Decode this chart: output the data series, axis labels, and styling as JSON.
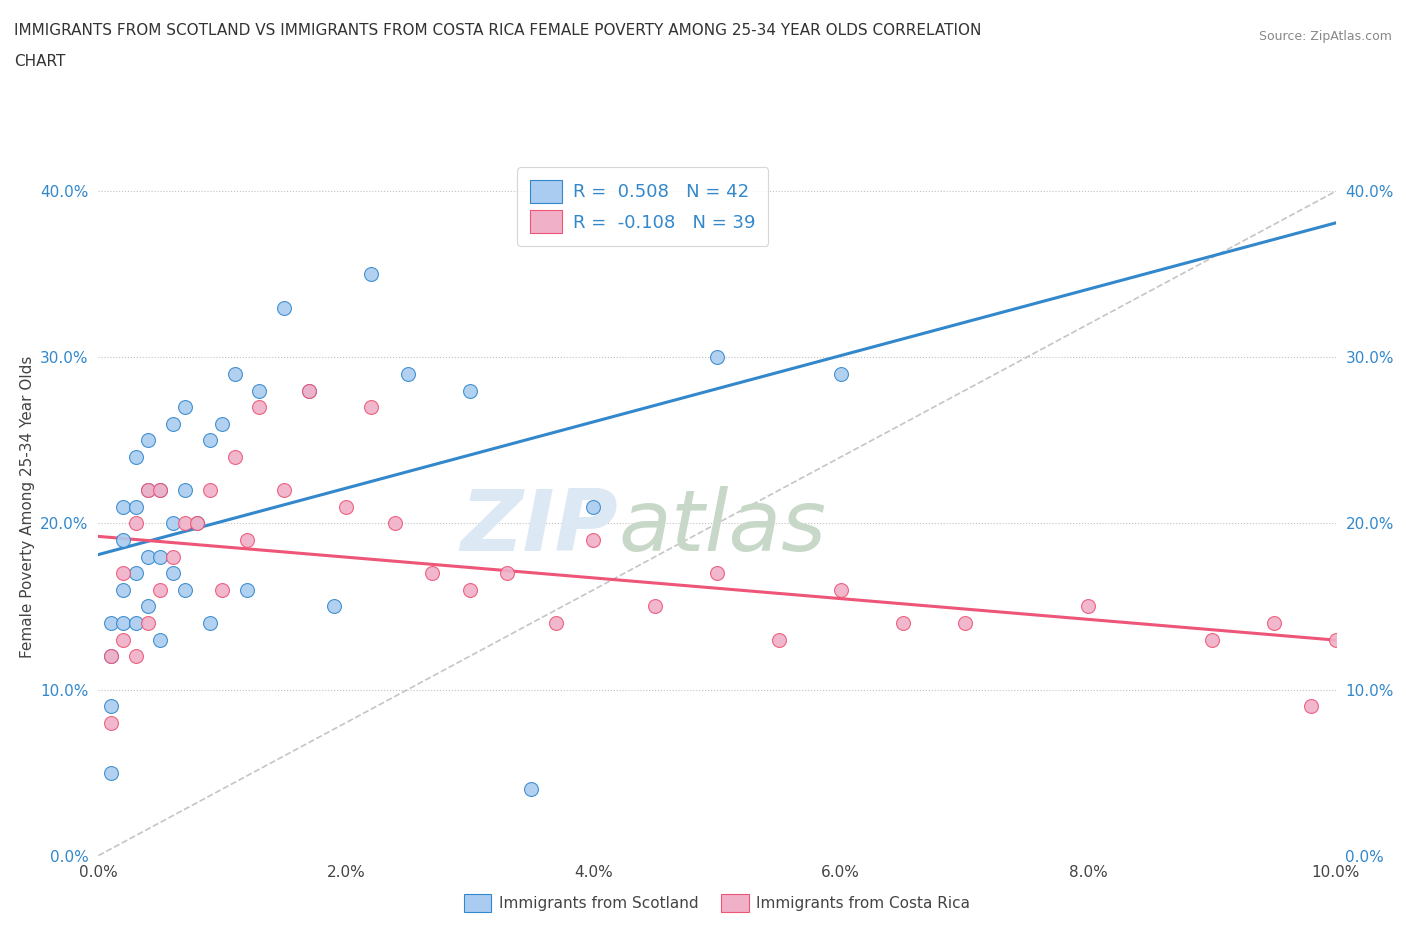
{
  "title_line1": "IMMIGRANTS FROM SCOTLAND VS IMMIGRANTS FROM COSTA RICA FEMALE POVERTY AMONG 25-34 YEAR OLDS CORRELATION",
  "title_line2": "CHART",
  "source_text": "Source: ZipAtlas.com",
  "ylabel": "Female Poverty Among 25-34 Year Olds",
  "xlim": [
    0.0,
    0.1
  ],
  "ylim": [
    0.0,
    0.42
  ],
  "xticks": [
    0.0,
    0.02,
    0.04,
    0.06,
    0.08,
    0.1
  ],
  "yticks": [
    0.0,
    0.1,
    0.2,
    0.3,
    0.4
  ],
  "scotland_R": 0.508,
  "scotland_N": 42,
  "costarica_R": -0.108,
  "costarica_N": 39,
  "scotland_color": "#aaccf0",
  "costarica_color": "#f0b0c8",
  "scotland_line_color": "#3388cc",
  "costarica_line_color": "#ee5577",
  "ref_line_color": "#bbbbbb",
  "watermark_color": "#dde8f5",
  "scotland_x": [
    0.001,
    0.001,
    0.001,
    0.001,
    0.002,
    0.002,
    0.002,
    0.002,
    0.003,
    0.003,
    0.003,
    0.003,
    0.004,
    0.004,
    0.004,
    0.004,
    0.005,
    0.005,
    0.005,
    0.006,
    0.006,
    0.006,
    0.007,
    0.007,
    0.007,
    0.008,
    0.009,
    0.009,
    0.01,
    0.011,
    0.012,
    0.013,
    0.015,
    0.017,
    0.019,
    0.022,
    0.025,
    0.03,
    0.035,
    0.04,
    0.05,
    0.06
  ],
  "scotland_y": [
    0.05,
    0.09,
    0.12,
    0.14,
    0.14,
    0.16,
    0.19,
    0.21,
    0.14,
    0.17,
    0.21,
    0.24,
    0.15,
    0.18,
    0.22,
    0.25,
    0.13,
    0.18,
    0.22,
    0.17,
    0.2,
    0.26,
    0.16,
    0.22,
    0.27,
    0.2,
    0.14,
    0.25,
    0.26,
    0.29,
    0.16,
    0.28,
    0.33,
    0.28,
    0.15,
    0.35,
    0.29,
    0.28,
    0.04,
    0.21,
    0.3,
    0.29
  ],
  "costarica_x": [
    0.001,
    0.001,
    0.002,
    0.002,
    0.003,
    0.003,
    0.004,
    0.004,
    0.005,
    0.005,
    0.006,
    0.007,
    0.008,
    0.009,
    0.01,
    0.011,
    0.012,
    0.013,
    0.015,
    0.017,
    0.02,
    0.022,
    0.024,
    0.027,
    0.03,
    0.033,
    0.037,
    0.04,
    0.045,
    0.05,
    0.055,
    0.06,
    0.065,
    0.07,
    0.08,
    0.09,
    0.095,
    0.098,
    0.1
  ],
  "costarica_y": [
    0.08,
    0.12,
    0.13,
    0.17,
    0.12,
    0.2,
    0.14,
    0.22,
    0.16,
    0.22,
    0.18,
    0.2,
    0.2,
    0.22,
    0.16,
    0.24,
    0.19,
    0.27,
    0.22,
    0.28,
    0.21,
    0.27,
    0.2,
    0.17,
    0.16,
    0.17,
    0.14,
    0.19,
    0.15,
    0.17,
    0.13,
    0.16,
    0.14,
    0.14,
    0.15,
    0.13,
    0.14,
    0.09,
    0.13
  ]
}
